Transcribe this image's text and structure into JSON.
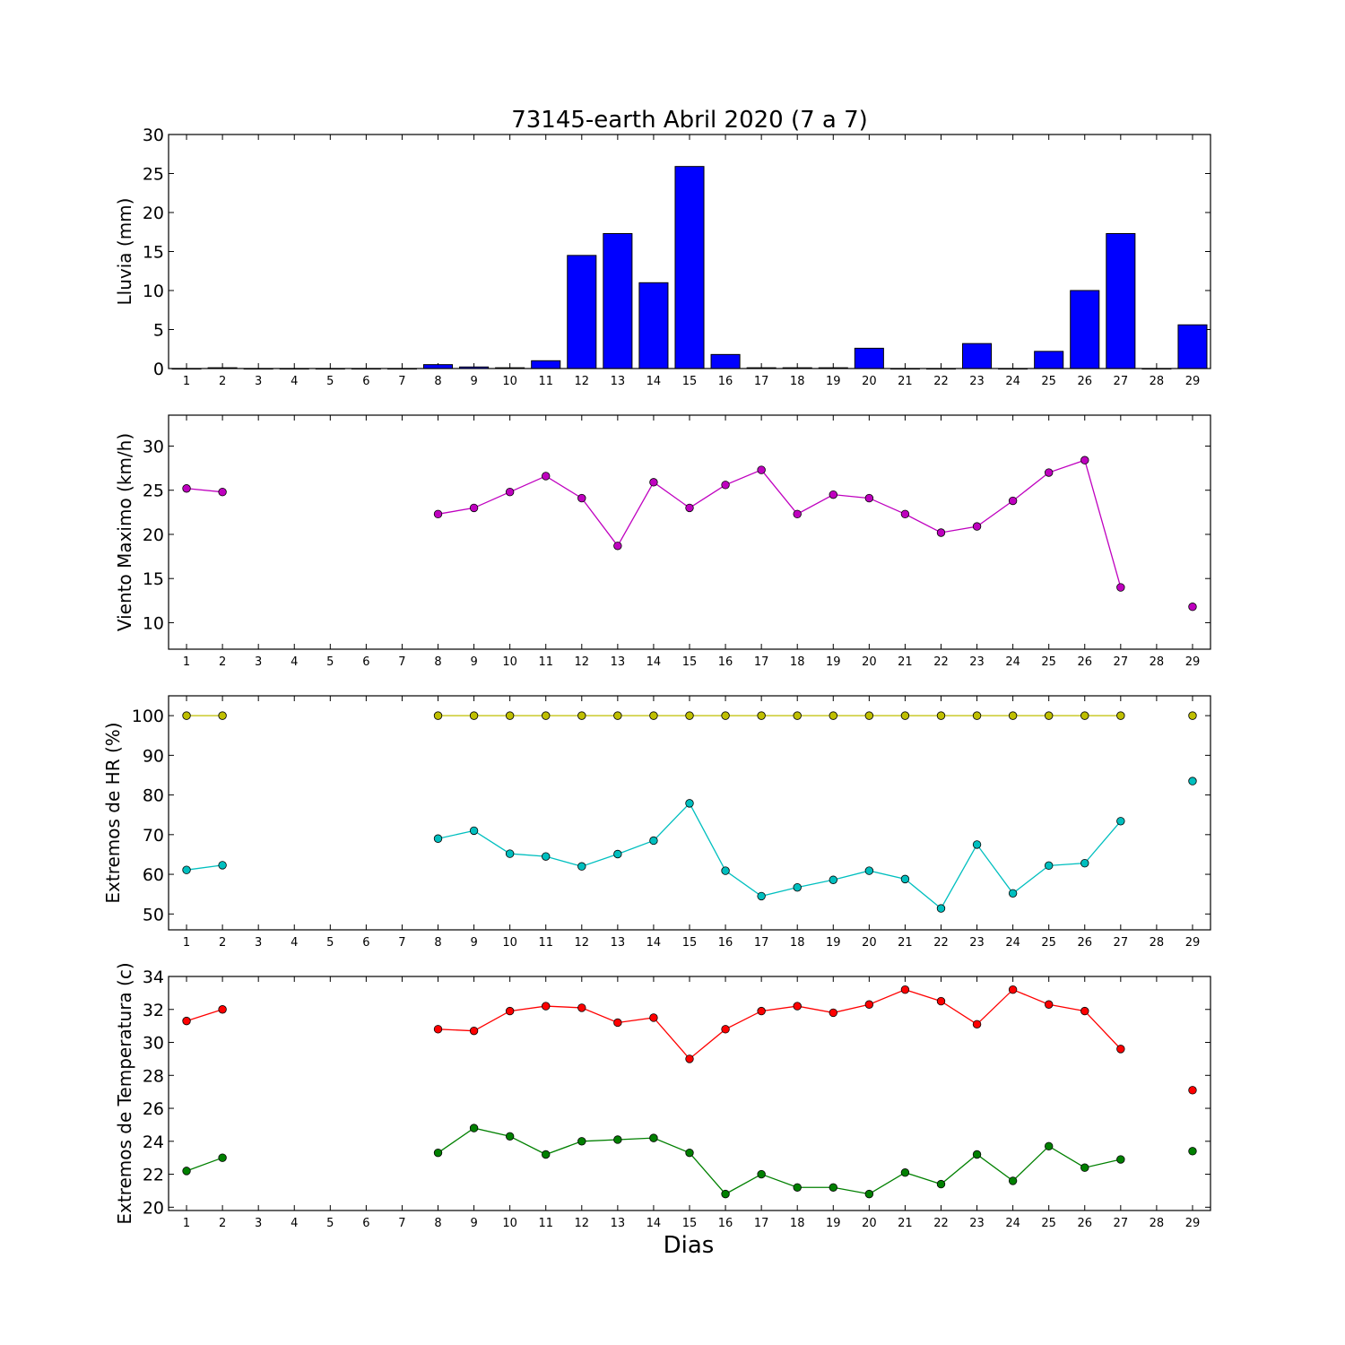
{
  "figure": {
    "title": "73145-earth Abril 2020  (7 a 7)",
    "xlabel": "Dias"
  },
  "chart_data": [
    {
      "type": "bar",
      "ylabel": "Lluvia (mm)",
      "ylim": [
        0,
        30
      ],
      "yticks": [
        0,
        5,
        10,
        15,
        20,
        25,
        30
      ],
      "xticks": [
        1,
        2,
        3,
        4,
        5,
        6,
        7,
        8,
        9,
        10,
        11,
        12,
        13,
        14,
        15,
        16,
        17,
        18,
        19,
        20,
        21,
        22,
        23,
        24,
        25,
        26,
        27,
        28,
        29
      ],
      "xlim": [
        0.5,
        29.5
      ],
      "grid": false,
      "series": [
        {
          "color": "#0000ff",
          "x": [
            1,
            2,
            3,
            4,
            5,
            6,
            7,
            8,
            9,
            10,
            11,
            12,
            13,
            14,
            15,
            16,
            17,
            18,
            19,
            20,
            21,
            22,
            23,
            24,
            25,
            26,
            27,
            28,
            29
          ],
          "values": [
            0,
            0.1,
            0,
            0,
            0,
            0,
            0,
            0.5,
            0.2,
            0.1,
            1.0,
            14.5,
            17.3,
            11.0,
            25.9,
            1.8,
            0.1,
            0.1,
            0.1,
            2.6,
            0,
            0,
            3.2,
            0,
            2.2,
            10.0,
            17.3,
            0,
            5.6
          ]
        }
      ]
    },
    {
      "type": "line",
      "ylabel": "Viento Maximo (km/h)",
      "ylim": [
        7,
        33.5
      ],
      "yticks": [
        10,
        15,
        20,
        25,
        30
      ],
      "xticks": [
        1,
        2,
        3,
        4,
        5,
        6,
        7,
        8,
        9,
        10,
        11,
        12,
        13,
        14,
        15,
        16,
        17,
        18,
        19,
        20,
        21,
        22,
        23,
        24,
        25,
        26,
        27,
        28,
        29
      ],
      "xlim": [
        0.5,
        29.5
      ],
      "grid": false,
      "series": [
        {
          "color": "#bf00bf",
          "x": [
            1,
            2,
            3,
            4,
            5,
            6,
            7,
            8,
            9,
            10,
            11,
            12,
            13,
            14,
            15,
            16,
            17,
            18,
            19,
            20,
            21,
            22,
            23,
            24,
            25,
            26,
            27,
            28,
            29
          ],
          "values": [
            25.2,
            24.8,
            null,
            null,
            null,
            null,
            null,
            22.3,
            23.0,
            24.8,
            26.6,
            24.1,
            18.7,
            25.9,
            23.0,
            25.6,
            27.3,
            22.3,
            24.5,
            24.1,
            22.3,
            20.2,
            20.9,
            23.8,
            27.0,
            28.4,
            14.0,
            null,
            11.8
          ]
        }
      ]
    },
    {
      "type": "line",
      "ylabel": "Extremos de HR (%)",
      "ylim": [
        46,
        105
      ],
      "yticks": [
        50,
        60,
        70,
        80,
        90,
        100
      ],
      "xticks": [
        1,
        2,
        3,
        4,
        5,
        6,
        7,
        8,
        9,
        10,
        11,
        12,
        13,
        14,
        15,
        16,
        17,
        18,
        19,
        20,
        21,
        22,
        23,
        24,
        25,
        26,
        27,
        28,
        29
      ],
      "xlim": [
        0.5,
        29.5
      ],
      "grid": false,
      "series": [
        {
          "color": "#bfbf00",
          "x": [
            1,
            2,
            3,
            4,
            5,
            6,
            7,
            8,
            9,
            10,
            11,
            12,
            13,
            14,
            15,
            16,
            17,
            18,
            19,
            20,
            21,
            22,
            23,
            24,
            25,
            26,
            27,
            28,
            29
          ],
          "values": [
            100,
            100,
            null,
            null,
            null,
            null,
            null,
            100,
            100,
            100,
            100,
            100,
            100,
            100,
            100,
            100,
            100,
            100,
            100,
            100,
            100,
            100,
            100,
            100,
            100,
            100,
            100,
            null,
            100
          ]
        },
        {
          "color": "#00bfbf",
          "x": [
            1,
            2,
            3,
            4,
            5,
            6,
            7,
            8,
            9,
            10,
            11,
            12,
            13,
            14,
            15,
            16,
            17,
            18,
            19,
            20,
            21,
            22,
            23,
            24,
            25,
            26,
            27,
            28,
            29
          ],
          "values": [
            61.1,
            62.3,
            null,
            null,
            null,
            null,
            null,
            69.0,
            71.0,
            65.2,
            64.5,
            62.0,
            65.1,
            68.5,
            77.9,
            60.9,
            54.5,
            56.7,
            58.6,
            60.9,
            58.8,
            51.4,
            67.5,
            55.2,
            62.2,
            62.8,
            73.4,
            null,
            83.5
          ]
        }
      ]
    },
    {
      "type": "line",
      "ylabel": "Extremos de Temperatura (c)",
      "ylim": [
        19.8,
        34
      ],
      "yticks": [
        20,
        22,
        24,
        26,
        28,
        30,
        32,
        34
      ],
      "xticks": [
        1,
        2,
        3,
        4,
        5,
        6,
        7,
        8,
        9,
        10,
        11,
        12,
        13,
        14,
        15,
        16,
        17,
        18,
        19,
        20,
        21,
        22,
        23,
        24,
        25,
        26,
        27,
        28,
        29
      ],
      "xlim": [
        0.5,
        29.5
      ],
      "grid": false,
      "series": [
        {
          "color": "#ff0000",
          "x": [
            1,
            2,
            3,
            4,
            5,
            6,
            7,
            8,
            9,
            10,
            11,
            12,
            13,
            14,
            15,
            16,
            17,
            18,
            19,
            20,
            21,
            22,
            23,
            24,
            25,
            26,
            27,
            28,
            29
          ],
          "values": [
            31.3,
            32.0,
            null,
            null,
            null,
            null,
            null,
            30.8,
            30.7,
            31.9,
            32.2,
            32.1,
            31.2,
            31.5,
            29.0,
            30.8,
            31.9,
            32.2,
            31.8,
            32.3,
            33.2,
            32.5,
            31.1,
            33.2,
            32.3,
            31.9,
            29.6,
            null,
            27.1
          ]
        },
        {
          "color": "#008000",
          "x": [
            1,
            2,
            3,
            4,
            5,
            6,
            7,
            8,
            9,
            10,
            11,
            12,
            13,
            14,
            15,
            16,
            17,
            18,
            19,
            20,
            21,
            22,
            23,
            24,
            25,
            26,
            27,
            28,
            29
          ],
          "values": [
            22.2,
            23.0,
            null,
            null,
            null,
            null,
            null,
            23.3,
            24.8,
            24.3,
            23.2,
            24.0,
            24.1,
            24.2,
            23.3,
            20.8,
            22.0,
            21.2,
            21.2,
            20.8,
            22.1,
            21.4,
            23.2,
            21.6,
            23.7,
            22.4,
            22.9,
            null,
            23.4
          ]
        }
      ]
    }
  ]
}
